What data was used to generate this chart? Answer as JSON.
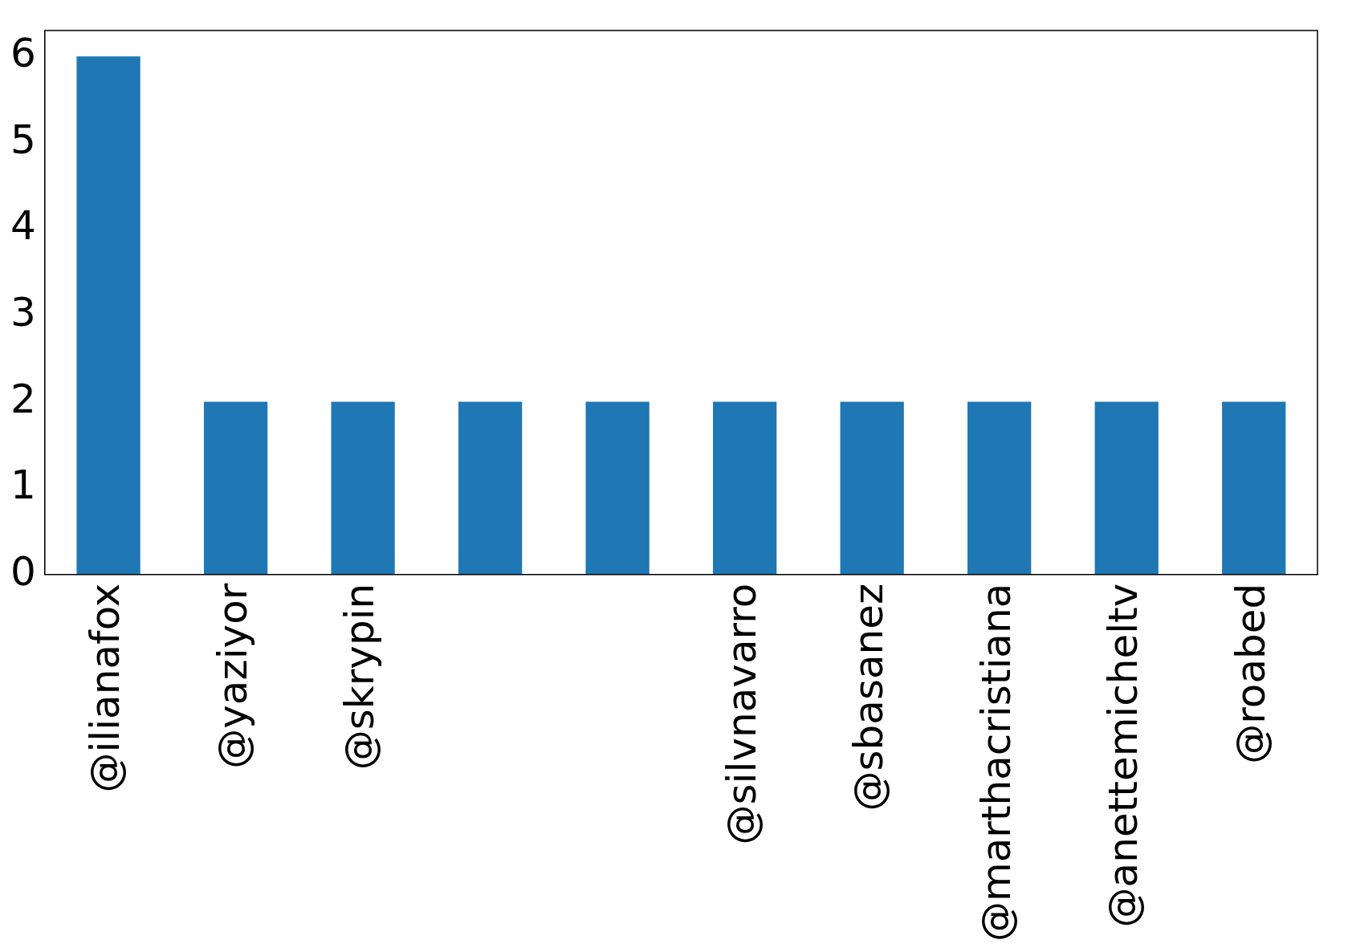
{
  "chart_data": {
    "type": "bar",
    "categories": [
      "@ilianafox",
      "@yaziyor",
      "@skrypin",
      null,
      null,
      "@silvnavarro",
      "@sbasanez",
      "@marthacristiana",
      "@anettemicheltv",
      "@roabed"
    ],
    "values": [
      6,
      2,
      2,
      2,
      2,
      2,
      2,
      2,
      2,
      2
    ],
    "color": "#1f77b4",
    "ylim": [
      0,
      6.3
    ],
    "yticks": [
      0,
      1,
      2,
      3,
      4,
      5,
      6
    ],
    "grid": false,
    "legend": false
  }
}
